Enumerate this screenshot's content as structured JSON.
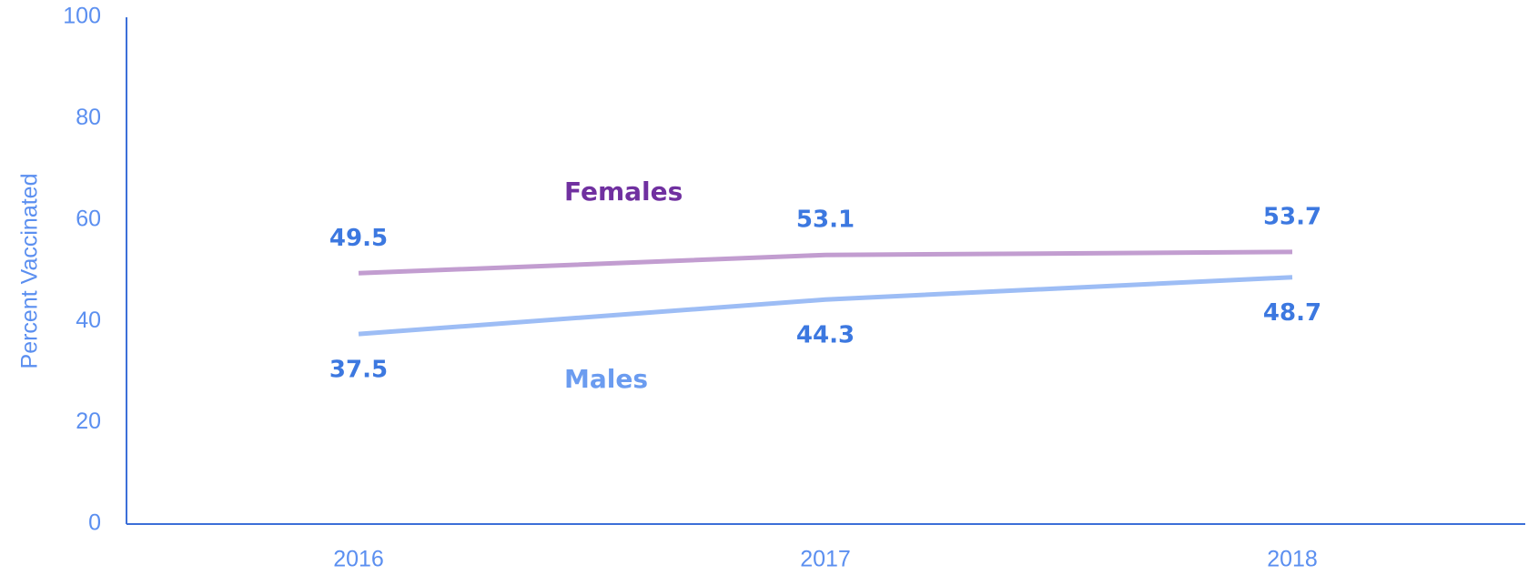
{
  "chart_data": {
    "type": "line",
    "y_label": "Percent Vaccinated",
    "categories": [
      "2016",
      "2017",
      "2018"
    ],
    "series": [
      {
        "name": "Females",
        "color": "#c29dd0",
        "name_color": "#7030a0",
        "values": [
          49.5,
          53.1,
          53.7
        ]
      },
      {
        "name": "Males",
        "color": "#9dbdf5",
        "name_color": "#6b9cf0",
        "values": [
          37.5,
          44.3,
          48.7
        ]
      }
    ],
    "value_label_color": "#3c78e0",
    "axis_color": "#3c6fd8",
    "ylim": [
      0,
      100
    ],
    "yticks": [
      0,
      20,
      40,
      60,
      80,
      100
    ],
    "grid": false
  }
}
